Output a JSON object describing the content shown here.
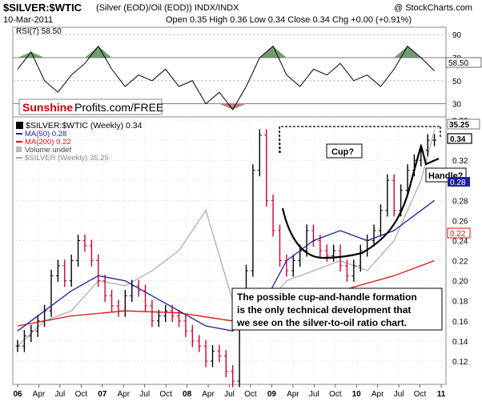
{
  "header": {
    "symbol": "$SILVER:$WTIC",
    "description": "(Silver (EOD)/Oil (EOD)) INDX/INDX",
    "date": "10-Mar-2011",
    "ohlc": "Open 0.35  High 0.36  Low 0.34  Close 0.34  Chg +0.00 (+0.91%)",
    "open": "0.35",
    "copyright": "@ StockCharts.com"
  },
  "rsi_panel": {
    "label": "RSI(7) 58.50",
    "value_badge": "58.50",
    "ticks": [
      30,
      50,
      70,
      90
    ],
    "overbought": 70,
    "oversold": 30
  },
  "logo": {
    "part1": "Sunshine",
    "part2": "Profits.com/FREE"
  },
  "legend": {
    "main": "$SILVER:$WTIC (Weekly) 0.34",
    "ma50": "MA(50) 0.28",
    "ma200": "MA(200) 0.22",
    "volume": "Volume undef",
    "silver": "$SILVER (Weekly) 35.25"
  },
  "badges": {
    "silver_price": "35.25",
    "close": "0.34",
    "ma50": "0.28",
    "ma200": "0.22"
  },
  "annotations": {
    "cup": "Cup?",
    "handle": "Handle?",
    "note_lines": [
      "The possible cup-and-handle formation",
      "is the only technical development that",
      "we see on the silver-to-oil ratio chart."
    ]
  },
  "colors": {
    "up_bar": "#000000",
    "down_bar": "#cc0033",
    "ma50": "#1f1f99",
    "ma200": "#dd1111",
    "silver_line": "#a8a8a8",
    "rsi_fill_high": "#5a8a5a",
    "rsi_fill_low": "#b06a6a",
    "logo_red": "#cc0000"
  },
  "chart_data": {
    "type": "line",
    "title": "$SILVER:$WTIC (Silver (EOD)/Oil (EOD)) Weekly",
    "x_labels": [
      "06",
      "Apr",
      "Jul",
      "Oct",
      "07",
      "Apr",
      "Jul",
      "Oct",
      "08",
      "Apr",
      "Jul",
      "Oct",
      "09",
      "Apr",
      "Jul",
      "Oct",
      "10",
      "Apr",
      "Jul",
      "Oct",
      "11"
    ],
    "ylim": [
      0.1,
      0.36
    ],
    "y_ticks": [
      0.12,
      0.14,
      0.16,
      0.18,
      0.2,
      0.22,
      0.24,
      0.26,
      0.28,
      0.3,
      0.32,
      0.34,
      0.36
    ],
    "x_range": [
      0,
      63
    ],
    "series": [
      {
        "name": "$SILVER:$WTIC (Weekly)",
        "x": [
          0,
          1,
          2,
          3,
          4,
          5,
          6,
          7,
          8,
          9,
          10,
          11,
          12,
          13,
          14,
          15,
          16,
          17,
          18,
          19,
          20,
          21,
          22,
          23,
          24,
          25,
          26,
          27,
          28,
          29,
          30,
          31,
          32,
          33,
          34,
          35,
          36,
          37,
          38,
          39,
          40,
          41,
          42,
          43,
          44,
          45,
          46,
          47,
          48,
          49,
          50,
          51,
          52,
          53,
          54,
          55,
          56,
          57,
          58,
          59,
          60,
          61,
          62
        ],
        "values": [
          0.135,
          0.145,
          0.15,
          0.16,
          0.17,
          0.205,
          0.215,
          0.2,
          0.22,
          0.24,
          0.235,
          0.22,
          0.2,
          0.185,
          0.175,
          0.17,
          0.185,
          0.195,
          0.19,
          0.175,
          0.16,
          0.165,
          0.17,
          0.165,
          0.16,
          0.15,
          0.14,
          0.135,
          0.12,
          0.13,
          0.125,
          0.11,
          0.1,
          0.16,
          0.21,
          0.31,
          0.345,
          0.28,
          0.25,
          0.22,
          0.21,
          0.22,
          0.23,
          0.25,
          0.24,
          0.23,
          0.225,
          0.23,
          0.215,
          0.205,
          0.215,
          0.23,
          0.24,
          0.25,
          0.27,
          0.3,
          0.27,
          0.29,
          0.31,
          0.32,
          0.33,
          0.34,
          0.34
        ]
      },
      {
        "name": "MA(50)",
        "x": [
          0,
          4,
          8,
          12,
          16,
          20,
          24,
          28,
          32,
          36,
          40,
          44,
          48,
          52,
          56,
          60,
          62
        ],
        "values": [
          0.15,
          0.17,
          0.19,
          0.205,
          0.2,
          0.185,
          0.17,
          0.155,
          0.15,
          0.17,
          0.22,
          0.24,
          0.25,
          0.24,
          0.25,
          0.27,
          0.28
        ]
      },
      {
        "name": "MA(200)",
        "x": [
          0,
          8,
          16,
          24,
          32,
          40,
          48,
          56,
          62
        ],
        "values": [
          0.155,
          0.165,
          0.17,
          0.168,
          0.16,
          0.17,
          0.19,
          0.205,
          0.22
        ]
      },
      {
        "name": "$SILVER (Weekly)",
        "x": [
          0,
          4,
          8,
          12,
          16,
          20,
          24,
          28,
          32,
          36,
          40,
          44,
          48,
          52,
          56,
          60,
          62
        ],
        "values": [
          0.135,
          0.16,
          0.17,
          0.2,
          0.195,
          0.21,
          0.23,
          0.27,
          0.18,
          0.17,
          0.2,
          0.21,
          0.22,
          0.21,
          0.24,
          0.3,
          0.35
        ]
      }
    ],
    "rsi": {
      "name": "RSI(7)",
      "ylim": [
        20,
        95
      ],
      "x": [
        0,
        2,
        4,
        6,
        8,
        10,
        12,
        14,
        16,
        18,
        20,
        22,
        24,
        26,
        28,
        30,
        32,
        34,
        36,
        38,
        40,
        42,
        44,
        46,
        48,
        50,
        52,
        54,
        56,
        58,
        60,
        62
      ],
      "values": [
        60,
        75,
        50,
        40,
        55,
        65,
        80,
        60,
        45,
        55,
        50,
        60,
        45,
        50,
        30,
        40,
        25,
        45,
        70,
        80,
        55,
        45,
        60,
        55,
        65,
        50,
        55,
        45,
        60,
        80,
        70,
        58.5
      ]
    }
  }
}
